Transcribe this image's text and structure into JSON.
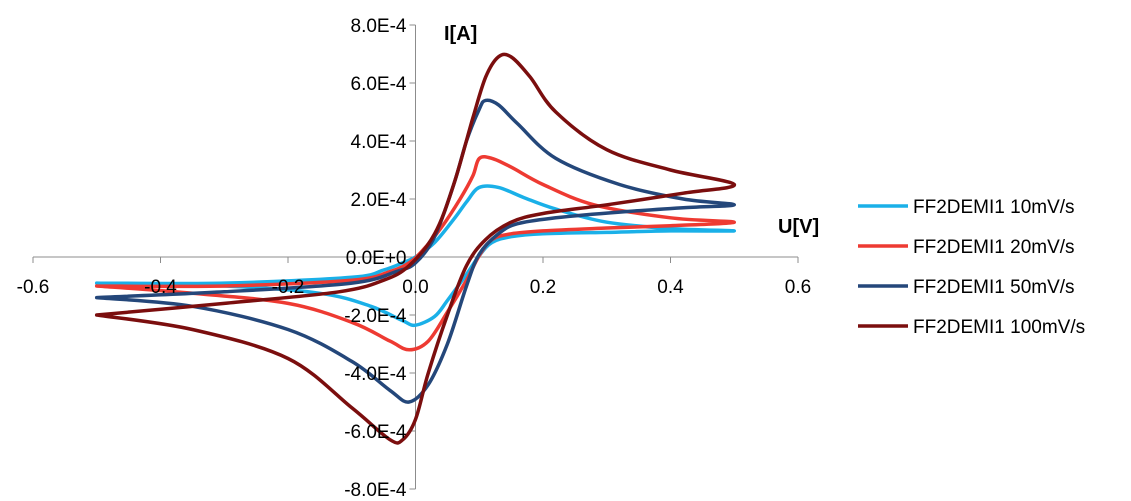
{
  "chart_data": {
    "type": "line",
    "title": "",
    "xlabel": "U[V]",
    "ylabel": "I[A]",
    "xlim": [
      -0.6,
      0.6
    ],
    "ylim": [
      -0.0008,
      0.0008
    ],
    "x_ticks": [
      -0.6,
      -0.4,
      -0.2,
      0.0,
      0.2,
      0.4,
      0.6
    ],
    "x_tick_labels": [
      "-0.6",
      "-0.4",
      "-0.2",
      "0.0",
      "0.2",
      "0.4",
      "0.6"
    ],
    "y_ticks": [
      0.0008,
      0.0006,
      0.0004,
      0.0002,
      0,
      -0.0002,
      -0.0004,
      -0.0006,
      -0.0008
    ],
    "y_tick_labels": [
      "8.0E-4",
      "6.0E-4",
      "4.0E-4",
      "2.0E-4",
      "0.0E+0",
      "-2.0E-4",
      "-4.0E-4",
      "-6.0E-4",
      "-8.0E-4"
    ],
    "grid": false,
    "legend_position": "right",
    "series": [
      {
        "name": "FF2DEMI1 10mV/s",
        "color": "#1ab0e8",
        "points": [
          [
            -0.5,
            -9e-05
          ],
          [
            -0.3,
            -9e-05
          ],
          [
            -0.1,
            -7e-05
          ],
          [
            -0.05,
            -4.5e-05
          ],
          [
            -0.02,
            -2e-05
          ],
          [
            0.0,
            0.0
          ],
          [
            0.03,
            5e-05
          ],
          [
            0.06,
            0.00013
          ],
          [
            0.08,
            0.00019
          ],
          [
            0.1,
            0.00024
          ],
          [
            0.13,
            0.00024
          ],
          [
            0.17,
            0.000205
          ],
          [
            0.22,
            0.000165
          ],
          [
            0.3,
            0.00012
          ],
          [
            0.4,
            9.8e-05
          ],
          [
            0.5,
            9e-05
          ],
          [
            0.4,
            9e-05
          ],
          [
            0.3,
            8.5e-05
          ],
          [
            0.2,
            8e-05
          ],
          [
            0.15,
            7e-05
          ],
          [
            0.12,
            5e-05
          ],
          [
            0.1,
            5e-06
          ],
          [
            0.08,
            -6e-05
          ],
          [
            0.05,
            -0.00015
          ],
          [
            0.03,
            -0.000205
          ],
          [
            0.0,
            -0.000235
          ],
          [
            -0.02,
            -0.00022
          ],
          [
            -0.07,
            -0.00017
          ],
          [
            -0.15,
            -0.000125
          ],
          [
            -0.3,
            -0.0001
          ],
          [
            -0.5,
            -9e-05
          ]
        ]
      },
      {
        "name": "FF2DEMI1 20mV/s",
        "color": "#ee3a32",
        "points": [
          [
            -0.5,
            -0.0001
          ],
          [
            -0.3,
            -0.0001
          ],
          [
            -0.1,
            -8e-05
          ],
          [
            -0.04,
            -5e-05
          ],
          [
            -0.01,
            -2e-05
          ],
          [
            0.01,
            2e-05
          ],
          [
            0.04,
            0.0001
          ],
          [
            0.07,
            0.0002
          ],
          [
            0.09,
            0.00028
          ],
          [
            0.1,
            0.00034
          ],
          [
            0.12,
            0.00034
          ],
          [
            0.15,
            0.00031
          ],
          [
            0.2,
            0.00025
          ],
          [
            0.28,
            0.00018
          ],
          [
            0.4,
            0.000135
          ],
          [
            0.5,
            0.00012
          ],
          [
            0.4,
            0.000108
          ],
          [
            0.3,
            0.0001
          ],
          [
            0.2,
            9e-05
          ],
          [
            0.15,
            8e-05
          ],
          [
            0.12,
            6e-05
          ],
          [
            0.1,
            5e-06
          ],
          [
            0.08,
            -8e-05
          ],
          [
            0.05,
            -0.00019
          ],
          [
            0.02,
            -0.00029
          ],
          [
            -0.01,
            -0.00032
          ],
          [
            -0.04,
            -0.00029
          ],
          [
            -0.1,
            -0.000225
          ],
          [
            -0.2,
            -0.00016
          ],
          [
            -0.35,
            -0.000125
          ],
          [
            -0.5,
            -0.0001
          ]
        ]
      },
      {
        "name": "FF2DEMI1 50mV/s",
        "color": "#24477a",
        "points": [
          [
            -0.5,
            -0.00014
          ],
          [
            -0.3,
            -0.00012
          ],
          [
            -0.1,
            -9e-05
          ],
          [
            -0.03,
            -5e-05
          ],
          [
            0.0,
            -2e-05
          ],
          [
            0.03,
            7e-05
          ],
          [
            0.06,
            0.00025
          ],
          [
            0.08,
            0.0004
          ],
          [
            0.1,
            0.00051
          ],
          [
            0.11,
            0.00054
          ],
          [
            0.13,
            0.000525
          ],
          [
            0.16,
            0.00046
          ],
          [
            0.22,
            0.00034
          ],
          [
            0.32,
            0.00025
          ],
          [
            0.42,
            0.0002
          ],
          [
            0.5,
            0.00018
          ],
          [
            0.42,
            0.00017
          ],
          [
            0.32,
            0.000155
          ],
          [
            0.22,
            0.000135
          ],
          [
            0.16,
            0.000115
          ],
          [
            0.13,
            8e-05
          ],
          [
            0.1,
            1e-05
          ],
          [
            0.08,
            -0.0001
          ],
          [
            0.05,
            -0.0003
          ],
          [
            0.02,
            -0.00044
          ],
          [
            -0.01,
            -0.0005
          ],
          [
            -0.04,
            -0.00046
          ],
          [
            -0.1,
            -0.00036
          ],
          [
            -0.2,
            -0.00025
          ],
          [
            -0.35,
            -0.00017
          ],
          [
            -0.5,
            -0.00014
          ]
        ]
      },
      {
        "name": "FF2DEMI1 100mV/s",
        "color": "#7b0e0e",
        "points": [
          [
            -0.5,
            -0.0002
          ],
          [
            -0.3,
            -0.00016
          ],
          [
            -0.12,
            -0.00012
          ],
          [
            -0.05,
            -8e-05
          ],
          [
            -0.01,
            -3e-05
          ],
          [
            0.03,
            8e-05
          ],
          [
            0.06,
            0.00025
          ],
          [
            0.09,
            0.00048
          ],
          [
            0.11,
            0.00062
          ],
          [
            0.13,
            0.00069
          ],
          [
            0.15,
            0.00069
          ],
          [
            0.18,
            0.00062
          ],
          [
            0.22,
            0.0005
          ],
          [
            0.3,
            0.00037
          ],
          [
            0.4,
            0.0003
          ],
          [
            0.5,
            0.00025
          ],
          [
            0.42,
            0.00022
          ],
          [
            0.3,
            0.00018
          ],
          [
            0.2,
            0.00015
          ],
          [
            0.15,
            0.00012
          ],
          [
            0.11,
            6e-05
          ],
          [
            0.08,
            -3e-05
          ],
          [
            0.05,
            -0.0002
          ],
          [
            0.02,
            -0.0004
          ],
          [
            0.0,
            -0.00056
          ],
          [
            -0.02,
            -0.00063
          ],
          [
            -0.04,
            -0.00063
          ],
          [
            -0.1,
            -0.00052
          ],
          [
            -0.2,
            -0.00035
          ],
          [
            -0.35,
            -0.00025
          ],
          [
            -0.5,
            -0.0002
          ]
        ]
      }
    ]
  }
}
